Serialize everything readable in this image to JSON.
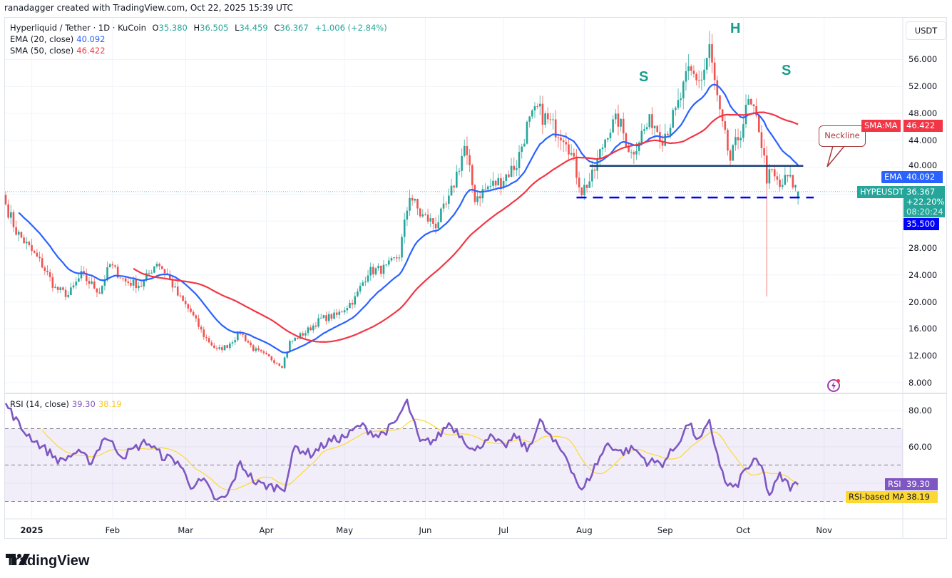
{
  "attribution": "ranadagger created with TradingView.com, Oct 22, 2025 15:39 UTC",
  "legend": {
    "symbol_line": "Hyperliquid / Tether · 1D · KuCoin",
    "open_label": "O",
    "open": "35.380",
    "high_label": "H",
    "high": "36.505",
    "low_label": "L",
    "low": "34.459",
    "close_label": "C",
    "close": "36.367",
    "change": "+1.006 (+2.84%)",
    "ema_label": "EMA (20, close)",
    "ema_value": "40.092",
    "sma_label": "SMA (50, close)",
    "sma_value": "46.422",
    "rsi_label": "RSI (14, close)",
    "rsi_value": "39.30",
    "rsi_ma_value": "38.19"
  },
  "currency_button": "USDT",
  "price_tags": {
    "sma_name": "SMA:MA",
    "sma_value": "46.422",
    "ema_name": "EMA",
    "ema_value": "40.092",
    "symbol_name": "HYPEUSDT",
    "last_price": "36.367",
    "last_change": "+22.20%",
    "countdown": "08:20:24",
    "support_value": "35.500",
    "rsi_name": "RSI",
    "rsi_value": "39.30",
    "rsi_ma_name": "RSI-based MA",
    "rsi_ma_value": "38.19"
  },
  "annotations": {
    "left_shoulder": "S",
    "head": "H",
    "right_shoulder": "S",
    "neckline": "Neckline"
  },
  "colors": {
    "up": "#26a69a",
    "down": "#ef5350",
    "ema": "#2962ff",
    "sma": "#f23645",
    "rsi": "#7e57c2",
    "rsi_ma": "#fdd835",
    "neckline": "#1b3f7a",
    "support": "#0000ff"
  },
  "footer_logo": "TradingView",
  "chart_data": [
    {
      "type": "line",
      "title": "Hyperliquid / Tether · 1D · KuCoin (candlestick)",
      "ylabel": "USDT",
      "y_ticks": [
        "56.000",
        "52.000",
        "48.000",
        "44.000",
        "40.000",
        "28.000",
        "24.000",
        "20.000",
        "16.000",
        "12.000",
        "8.000"
      ],
      "ylim": [
        8,
        58
      ],
      "x_ticks": [
        "2025",
        "Feb",
        "Mar",
        "Apr",
        "May",
        "Jun",
        "Jul",
        "Aug",
        "Sep",
        "Oct",
        "Nov"
      ],
      "price_waypoints": [
        [
          "2024-12-22",
          34.5
        ],
        [
          "2024-12-26",
          30.5
        ],
        [
          "2024-12-31",
          28.0
        ],
        [
          "2025-01-05",
          25.5
        ],
        [
          "2025-01-10",
          22.0
        ],
        [
          "2025-01-15",
          21.0
        ],
        [
          "2025-01-20",
          24.0
        ],
        [
          "2025-01-27",
          21.5
        ],
        [
          "2025-01-31",
          25.5
        ],
        [
          "2025-02-06",
          23.0
        ],
        [
          "2025-02-12",
          22.5
        ],
        [
          "2025-02-18",
          26.0
        ],
        [
          "2025-02-22",
          24.0
        ],
        [
          "2025-02-26",
          21.0
        ],
        [
          "2025-03-03",
          18.5
        ],
        [
          "2025-03-08",
          15.0
        ],
        [
          "2025-03-13",
          12.8
        ],
        [
          "2025-03-17",
          13.5
        ],
        [
          "2025-03-22",
          15.5
        ],
        [
          "2025-03-27",
          13.0
        ],
        [
          "2025-04-03",
          11.5
        ],
        [
          "2025-04-07",
          10.5
        ],
        [
          "2025-04-10",
          14.0
        ],
        [
          "2025-04-16",
          15.5
        ],
        [
          "2025-04-22",
          17.5
        ],
        [
          "2025-04-28",
          18.0
        ],
        [
          "2025-05-05",
          20.5
        ],
        [
          "2025-05-10",
          24.5
        ],
        [
          "2025-05-17",
          25.0
        ],
        [
          "2025-05-22",
          27.0
        ],
        [
          "2025-05-26",
          36.0
        ],
        [
          "2025-05-30",
          33.0
        ],
        [
          "2025-06-05",
          31.5
        ],
        [
          "2025-06-10",
          35.0
        ],
        [
          "2025-06-16",
          43.0
        ],
        [
          "2025-06-20",
          35.5
        ],
        [
          "2025-06-25",
          37.0
        ],
        [
          "2025-06-30",
          38.0
        ],
        [
          "2025-07-06",
          40.5
        ],
        [
          "2025-07-10",
          46.0
        ],
        [
          "2025-07-14",
          48.5
        ],
        [
          "2025-07-20",
          46.0
        ],
        [
          "2025-07-25",
          44.5
        ],
        [
          "2025-07-31",
          36.5
        ],
        [
          "2025-08-04",
          38.5
        ],
        [
          "2025-08-10",
          45.5
        ],
        [
          "2025-08-14",
          47.0
        ],
        [
          "2025-08-19",
          42.0
        ],
        [
          "2025-08-23",
          45.0
        ],
        [
          "2025-08-27",
          47.0
        ],
        [
          "2025-08-31",
          44.5
        ],
        [
          "2025-09-05",
          48.0
        ],
        [
          "2025-09-10",
          54.0
        ],
        [
          "2025-09-15",
          53.0
        ],
        [
          "2025-09-18",
          57.5
        ],
        [
          "2025-09-22",
          47.5
        ],
        [
          "2025-09-26",
          41.0
        ],
        [
          "2025-09-30",
          45.5
        ],
        [
          "2025-10-03",
          49.5
        ],
        [
          "2025-10-07",
          46.0
        ],
        [
          "2025-10-10",
          38.5
        ],
        [
          "2025-10-12",
          39.0
        ],
        [
          "2025-10-15",
          37.0
        ],
        [
          "2025-10-18",
          38.5
        ],
        [
          "2025-10-20",
          37.5
        ],
        [
          "2025-10-22",
          36.4
        ]
      ],
      "overlays": [
        {
          "name": "EMA (20, close)",
          "last": 40.092
        },
        {
          "name": "SMA (50, close)",
          "last": 46.422
        }
      ],
      "levels": [
        {
          "name": "Neckline",
          "value": 40.2,
          "from": "2025-08-03",
          "to": "2025-10-24"
        },
        {
          "name": "Support",
          "value": 35.5,
          "from": "2025-07-29",
          "to": "2025-10-28"
        }
      ],
      "extreme_wick": {
        "date": "2025-10-10",
        "low": 20.8
      }
    },
    {
      "type": "line",
      "title": "RSI (14, close)",
      "y_ticks": [
        "80.00",
        "60.00"
      ],
      "ylim": [
        22,
        84
      ],
      "bands": [
        30,
        50,
        70
      ],
      "rsi_waypoints": [
        [
          "2024-12-22",
          84
        ],
        [
          "2024-12-28",
          70
        ],
        [
          "2025-01-05",
          60
        ],
        [
          "2025-01-12",
          52
        ],
        [
          "2025-01-18",
          57
        ],
        [
          "2025-01-24",
          52
        ],
        [
          "2025-01-29",
          66
        ],
        [
          "2025-02-05",
          55
        ],
        [
          "2025-02-14",
          63
        ],
        [
          "2025-02-20",
          55
        ],
        [
          "2025-02-26",
          52
        ],
        [
          "2025-03-03",
          39
        ],
        [
          "2025-03-08",
          41
        ],
        [
          "2025-03-13",
          30
        ],
        [
          "2025-03-17",
          33
        ],
        [
          "2025-03-22",
          51
        ],
        [
          "2025-03-28",
          40
        ],
        [
          "2025-04-03",
          38
        ],
        [
          "2025-04-08",
          38
        ],
        [
          "2025-04-12",
          60
        ],
        [
          "2025-04-18",
          56
        ],
        [
          "2025-04-25",
          63
        ],
        [
          "2025-05-02",
          66
        ],
        [
          "2025-05-07",
          72
        ],
        [
          "2025-05-14",
          66
        ],
        [
          "2025-05-20",
          72
        ],
        [
          "2025-05-25",
          85
        ],
        [
          "2025-05-30",
          62
        ],
        [
          "2025-06-05",
          64
        ],
        [
          "2025-06-10",
          73
        ],
        [
          "2025-06-15",
          66
        ],
        [
          "2025-06-20",
          57
        ],
        [
          "2025-06-25",
          66
        ],
        [
          "2025-07-01",
          60
        ],
        [
          "2025-07-06",
          66
        ],
        [
          "2025-07-10",
          58
        ],
        [
          "2025-07-15",
          74
        ],
        [
          "2025-07-20",
          63
        ],
        [
          "2025-07-25",
          55
        ],
        [
          "2025-07-31",
          35
        ],
        [
          "2025-08-05",
          49
        ],
        [
          "2025-08-10",
          62
        ],
        [
          "2025-08-15",
          57
        ],
        [
          "2025-08-20",
          59
        ],
        [
          "2025-08-25",
          52
        ],
        [
          "2025-08-31",
          51
        ],
        [
          "2025-09-05",
          60
        ],
        [
          "2025-09-10",
          73
        ],
        [
          "2025-09-14",
          63
        ],
        [
          "2025-09-18",
          73
        ],
        [
          "2025-09-24",
          40
        ],
        [
          "2025-09-28",
          37
        ],
        [
          "2025-10-01",
          46
        ],
        [
          "2025-10-05",
          52
        ],
        [
          "2025-10-08",
          49
        ],
        [
          "2025-10-11",
          33
        ],
        [
          "2025-10-15",
          44
        ],
        [
          "2025-10-19",
          38
        ],
        [
          "2025-10-22",
          39.3
        ]
      ],
      "last_rsi": 39.3,
      "last_rsi_ma": 38.19
    }
  ]
}
